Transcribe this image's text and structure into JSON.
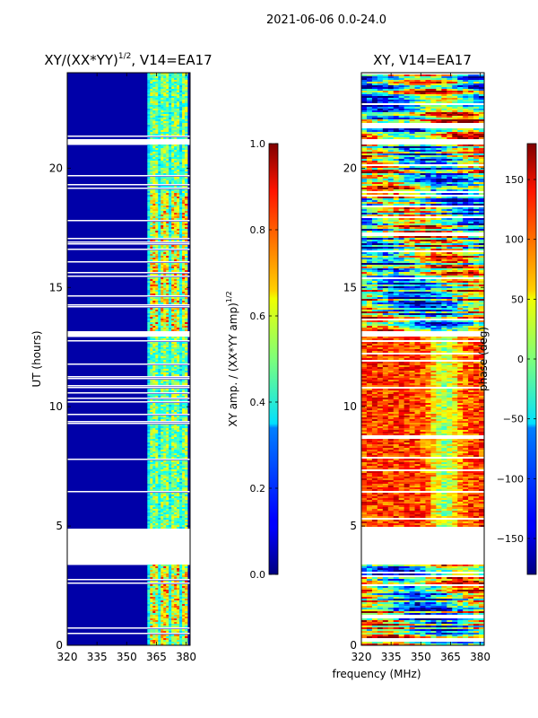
{
  "figure_title": "2021-06-06 0.0-24.0",
  "chart_data": [
    {
      "type": "heatmap",
      "title_main": "XY/(XX*YY)",
      "title_sup": "1/2",
      "title_rest": ", V14=EA17",
      "xlabel": "",
      "ylabel": "UT (hours)",
      "xlim": [
        320,
        382
      ],
      "ylim": [
        0,
        24
      ],
      "xticks": [
        "320",
        "335",
        "350",
        "365",
        "380"
      ],
      "xtick_values": [
        320,
        335,
        350,
        365,
        380
      ],
      "yticks": [
        "0",
        "5",
        "10",
        "15",
        "20"
      ],
      "ytick_values": [
        0,
        5,
        10,
        15,
        20
      ],
      "colormap": "jet",
      "gaps_hours": [
        [
          3.4,
          4.9
        ],
        [
          12.95,
          13.2
        ],
        [
          21.0,
          21.25
        ]
      ],
      "active_band_mhz": [
        360,
        380
      ],
      "colorbar": {
        "label_main": "XY amp. / (XX*YY amp)",
        "label_sup": "1/2",
        "range": [
          0,
          1
        ],
        "ticks": [
          "0.0",
          "0.2",
          "0.4",
          "0.6",
          "0.8",
          "1.0"
        ],
        "tick_values": [
          0.0,
          0.2,
          0.4,
          0.6,
          0.8,
          1.0
        ]
      }
    },
    {
      "type": "heatmap",
      "title": "XY, V14=EA17",
      "xlabel": "frequency (MHz)",
      "ylabel": "",
      "xlim": [
        320,
        382
      ],
      "ylim": [
        0,
        24
      ],
      "xticks": [
        "320",
        "335",
        "350",
        "365",
        "380"
      ],
      "xtick_values": [
        320,
        335,
        350,
        365,
        380
      ],
      "yticks": [
        "0",
        "5",
        "10",
        "15",
        "20"
      ],
      "ytick_values": [
        0,
        5,
        10,
        15,
        20
      ],
      "colormap": "jet",
      "gaps_hours": [
        [
          3.4,
          4.9
        ],
        [
          12.95,
          13.2
        ],
        [
          21.0,
          21.25
        ]
      ],
      "colorbar": {
        "label": "phase (deg)",
        "range": [
          -180,
          180
        ],
        "ticks": [
          "−150",
          "−100",
          "−50",
          "0",
          "50",
          "100",
          "150"
        ],
        "tick_values": [
          -150,
          -100,
          -50,
          0,
          50,
          100,
          150
        ]
      }
    }
  ]
}
